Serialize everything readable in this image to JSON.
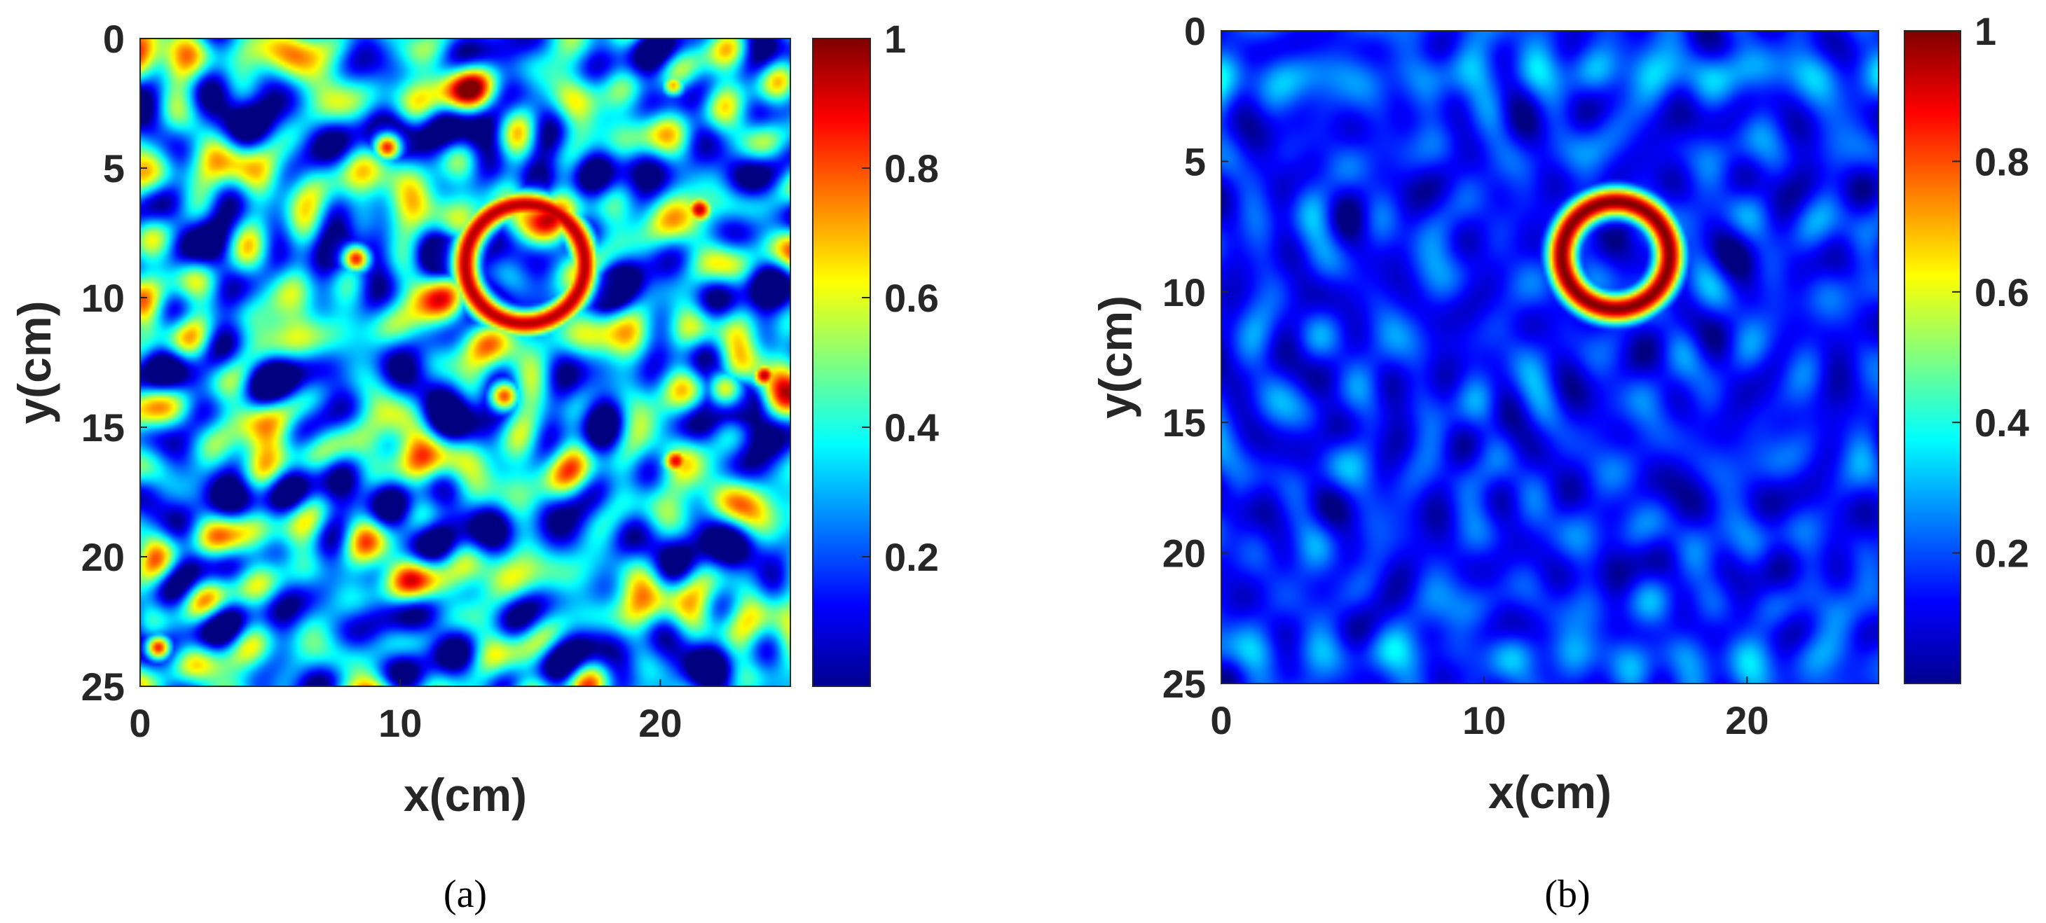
{
  "chart_data": [
    {
      "type": "heatmap",
      "panel_label": "(a)",
      "xlabel": "x(cm)",
      "ylabel": "y(cm)",
      "xlim": [
        0,
        25
      ],
      "ylim": [
        0,
        25
      ],
      "y_axis_reversed": true,
      "xticks": [
        "0",
        "10",
        "20"
      ],
      "xtick_values": [
        0,
        10,
        20
      ],
      "yticks": [
        "0",
        "5",
        "10",
        "15",
        "20",
        "25"
      ],
      "ytick_values": [
        0,
        5,
        10,
        15,
        20,
        25
      ],
      "colormap": "jet",
      "color_range": [
        0,
        1
      ],
      "colorbar_ticks": [
        "1",
        "0.8",
        "0.6",
        "0.4",
        "0.2"
      ],
      "colorbar_tick_values": [
        1,
        0.8,
        0.6,
        0.4,
        0.2
      ],
      "background_level": 0.3,
      "noise_amplitude": 0.28,
      "features": [
        {
          "kind": "ring",
          "x": 14.8,
          "y": 8.7,
          "radius": 2.3,
          "width": 0.55,
          "value": 0.95
        },
        {
          "kind": "spot",
          "x": 9.5,
          "y": 4.2,
          "radius": 0.55,
          "value": 0.85
        },
        {
          "kind": "spot",
          "x": 8.3,
          "y": 8.5,
          "radius": 0.55,
          "value": 0.85
        },
        {
          "kind": "spot",
          "x": 21.5,
          "y": 6.6,
          "radius": 0.55,
          "value": 0.95
        },
        {
          "kind": "spot",
          "x": 24.0,
          "y": 13.0,
          "radius": 0.5,
          "value": 0.95
        },
        {
          "kind": "spot",
          "x": 20.6,
          "y": 16.3,
          "radius": 0.55,
          "value": 0.9
        },
        {
          "kind": "spot",
          "x": 14.0,
          "y": 13.8,
          "radius": 0.6,
          "value": 0.8
        },
        {
          "kind": "spot",
          "x": 20.5,
          "y": 1.8,
          "radius": 0.45,
          "value": 0.7
        },
        {
          "kind": "spot",
          "x": 1.8,
          "y": 1.2,
          "radius": 0.5,
          "value": 0.6
        },
        {
          "kind": "spot",
          "x": 0.7,
          "y": 23.5,
          "radius": 0.5,
          "value": 0.85
        },
        {
          "kind": "spot",
          "x": 22.5,
          "y": 13.5,
          "radius": 0.7,
          "value": 0.6
        }
      ]
    },
    {
      "type": "heatmap",
      "panel_label": "(b)",
      "xlabel": "x(cm)",
      "ylabel": "y(cm)",
      "xlim": [
        0,
        25
      ],
      "ylim": [
        0,
        25
      ],
      "y_axis_reversed": true,
      "xticks": [
        "0",
        "10",
        "20"
      ],
      "xtick_values": [
        0,
        10,
        20
      ],
      "yticks": [
        "0",
        "5",
        "10",
        "15",
        "20",
        "25"
      ],
      "ytick_values": [
        0,
        5,
        10,
        15,
        20,
        25
      ],
      "colormap": "jet",
      "color_range": [
        0,
        1
      ],
      "colorbar_ticks": [
        "1",
        "0.8",
        "0.6",
        "0.4",
        "0.2"
      ],
      "colorbar_tick_values": [
        1,
        0.8,
        0.6,
        0.4,
        0.2
      ],
      "background_level": 0.15,
      "noise_amplitude": 0.08,
      "features": [
        {
          "kind": "ring",
          "x": 15.0,
          "y": 8.6,
          "radius": 2.05,
          "width": 0.6,
          "value": 1.0
        },
        {
          "kind": "band",
          "y": 1.5,
          "width": 0.9,
          "value": 0.1
        },
        {
          "kind": "band",
          "y": 23.8,
          "width": 0.8,
          "value": 0.08
        }
      ]
    }
  ]
}
